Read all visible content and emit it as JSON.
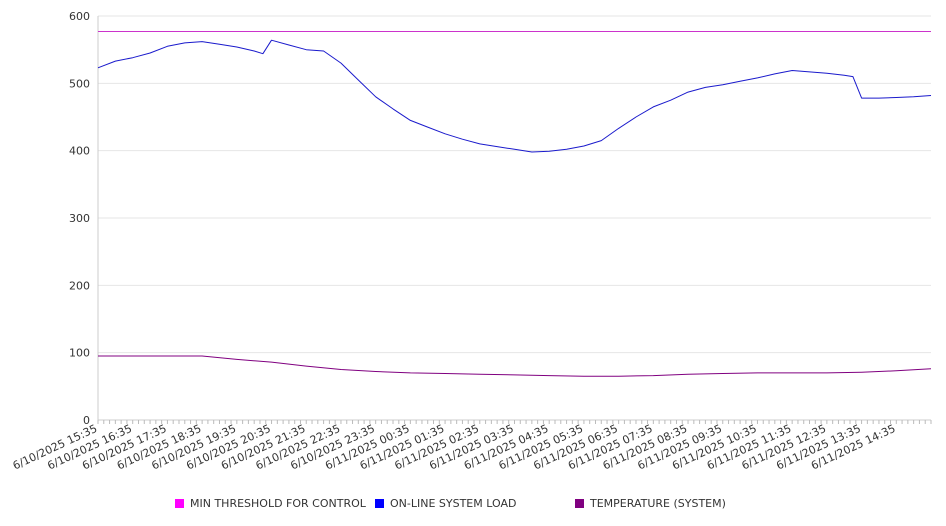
{
  "chart_data": {
    "type": "line",
    "title": "",
    "xlabel": "",
    "ylabel": "",
    "ylim": [
      0,
      600
    ],
    "y_ticks": [
      0,
      100,
      200,
      300,
      400,
      500,
      600
    ],
    "grid": "horizontal",
    "legend_position": "bottom",
    "x_tick_labels": [
      "6/10/2025 15:35",
      "6/10/2025 16:35",
      "6/10/2025 17:35",
      "6/10/2025 18:35",
      "6/10/2025 19:35",
      "6/10/2025 20:35",
      "6/10/2025 21:35",
      "6/10/2025 22:35",
      "6/10/2025 23:35",
      "6/11/2025 00:35",
      "6/11/2025 01:35",
      "6/11/2025 02:35",
      "6/11/2025 03:35",
      "6/11/2025 04:35",
      "6/11/2025 05:35",
      "6/11/2025 06:35",
      "6/11/2025 07:35",
      "6/11/2025 08:35",
      "6/11/2025 09:35",
      "6/11/2025 10:35",
      "6/11/2025 11:35",
      "6/11/2025 12:35",
      "6/11/2025 13:35",
      "6/11/2025 14:35"
    ],
    "x_end": "6/11/2025 15:35",
    "series": [
      {
        "name": "MIN THRESHOLD FOR CONTROL",
        "color": "#cc33cc",
        "points": [
          [
            "6/10/2025 15:35",
            577
          ],
          [
            "6/11/2025 15:35",
            577
          ]
        ]
      },
      {
        "name": "ON-LINE SYSTEM LOAD",
        "color": "#1a1acc",
        "points": [
          [
            "6/10/2025 15:35",
            523
          ],
          [
            "6/10/2025 16:05",
            533
          ],
          [
            "6/10/2025 16:35",
            538
          ],
          [
            "6/10/2025 17:05",
            545
          ],
          [
            "6/10/2025 17:35",
            555
          ],
          [
            "6/10/2025 18:05",
            560
          ],
          [
            "6/10/2025 18:35",
            562
          ],
          [
            "6/10/2025 19:05",
            558
          ],
          [
            "6/10/2025 19:35",
            554
          ],
          [
            "6/10/2025 20:05",
            548
          ],
          [
            "6/10/2025 20:20",
            544
          ],
          [
            "6/10/2025 20:35",
            564
          ],
          [
            "6/10/2025 21:05",
            557
          ],
          [
            "6/10/2025 21:35",
            550
          ],
          [
            "6/10/2025 22:05",
            548
          ],
          [
            "6/10/2025 22:35",
            530
          ],
          [
            "6/10/2025 23:05",
            505
          ],
          [
            "6/10/2025 23:35",
            480
          ],
          [
            "6/11/2025 00:05",
            462
          ],
          [
            "6/11/2025 00:35",
            445
          ],
          [
            "6/11/2025 01:05",
            435
          ],
          [
            "6/11/2025 01:35",
            425
          ],
          [
            "6/11/2025 02:05",
            417
          ],
          [
            "6/11/2025 02:35",
            410
          ],
          [
            "6/11/2025 03:05",
            406
          ],
          [
            "6/11/2025 03:35",
            402
          ],
          [
            "6/11/2025 04:05",
            398
          ],
          [
            "6/11/2025 04:35",
            399
          ],
          [
            "6/11/2025 05:05",
            402
          ],
          [
            "6/11/2025 05:35",
            407
          ],
          [
            "6/11/2025 06:05",
            415
          ],
          [
            "6/11/2025 06:35",
            433
          ],
          [
            "6/11/2025 07:05",
            450
          ],
          [
            "6/11/2025 07:35",
            465
          ],
          [
            "6/11/2025 08:05",
            475
          ],
          [
            "6/11/2025 08:35",
            487
          ],
          [
            "6/11/2025 09:05",
            494
          ],
          [
            "6/11/2025 09:35",
            498
          ],
          [
            "6/11/2025 10:05",
            503
          ],
          [
            "6/11/2025 10:35",
            508
          ],
          [
            "6/11/2025 11:05",
            514
          ],
          [
            "6/11/2025 11:35",
            519
          ],
          [
            "6/11/2025 12:05",
            517
          ],
          [
            "6/11/2025 12:35",
            515
          ],
          [
            "6/11/2025 13:05",
            512
          ],
          [
            "6/11/2025 13:20",
            510
          ],
          [
            "6/11/2025 13:35",
            478
          ],
          [
            "6/11/2025 14:05",
            478
          ],
          [
            "6/11/2025 14:35",
            479
          ],
          [
            "6/11/2025 15:05",
            480
          ],
          [
            "6/11/2025 15:35",
            482
          ]
        ]
      },
      {
        "name": "TEMPERATURE (SYSTEM)",
        "color": "#800080",
        "points": [
          [
            "6/10/2025 15:35",
            95
          ],
          [
            "6/10/2025 17:35",
            95
          ],
          [
            "6/10/2025 18:35",
            95
          ],
          [
            "6/10/2025 19:35",
            90
          ],
          [
            "6/10/2025 20:35",
            86
          ],
          [
            "6/10/2025 21:35",
            80
          ],
          [
            "6/10/2025 22:35",
            75
          ],
          [
            "6/10/2025 23:35",
            72
          ],
          [
            "6/11/2025 00:35",
            70
          ],
          [
            "6/11/2025 01:35",
            69
          ],
          [
            "6/11/2025 02:35",
            68
          ],
          [
            "6/11/2025 03:35",
            67
          ],
          [
            "6/11/2025 04:35",
            66
          ],
          [
            "6/11/2025 05:35",
            65
          ],
          [
            "6/11/2025 06:35",
            65
          ],
          [
            "6/11/2025 07:35",
            66
          ],
          [
            "6/11/2025 08:35",
            68
          ],
          [
            "6/11/2025 09:35",
            69
          ],
          [
            "6/11/2025 10:35",
            70
          ],
          [
            "6/11/2025 11:35",
            70
          ],
          [
            "6/11/2025 12:35",
            70
          ],
          [
            "6/11/2025 13:35",
            71
          ],
          [
            "6/11/2025 14:35",
            73
          ],
          [
            "6/11/2025 15:35",
            76
          ]
        ]
      }
    ]
  }
}
